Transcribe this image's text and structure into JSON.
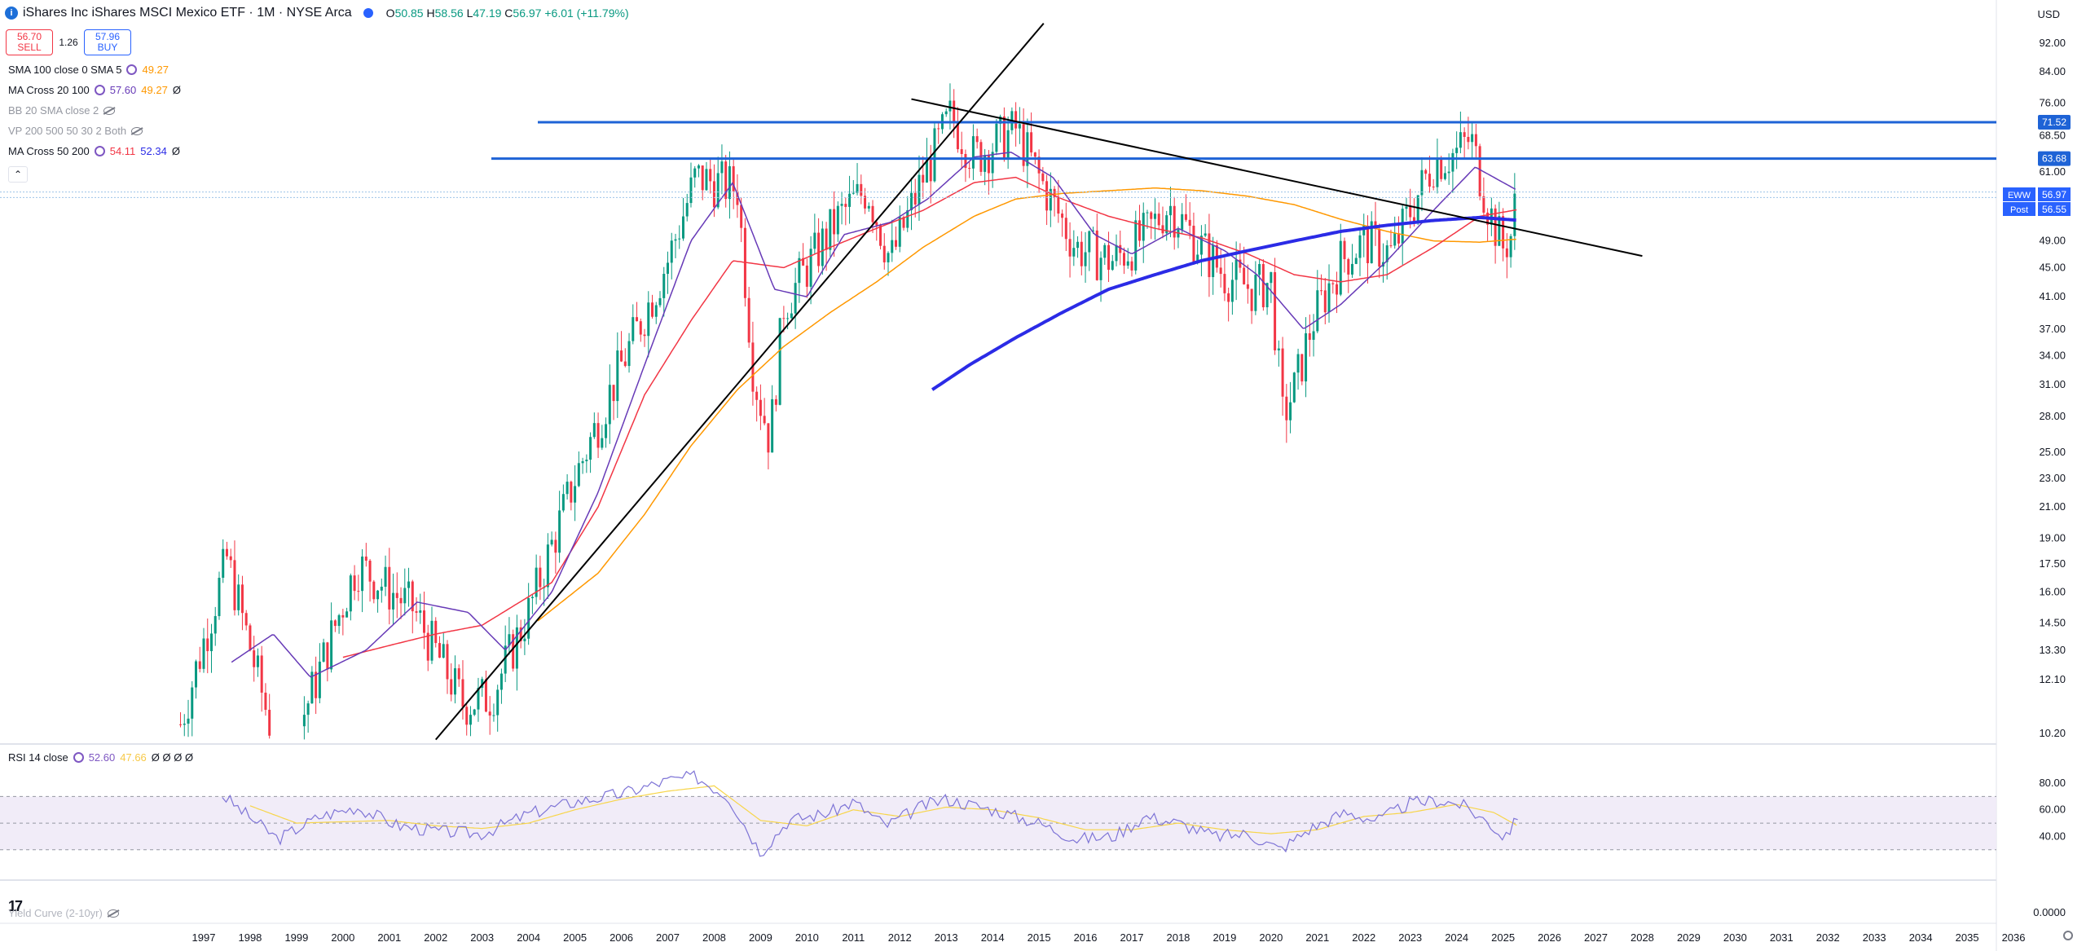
{
  "header": {
    "logo_letter": "i",
    "title": "iShares Inc iShares MSCI Mexico ETF · 1M · NYSE Arca",
    "o_label": "O",
    "o": "50.85",
    "h_label": "H",
    "h": "58.56",
    "l_label": "L",
    "l": "47.19",
    "c_label": "C",
    "c": "56.97",
    "change": "+6.01 (+11.79%)"
  },
  "trade": {
    "sell_price": "56.70",
    "sell_label": "SELL",
    "spread": "1.26",
    "buy_price": "57.96",
    "buy_label": "BUY"
  },
  "indicators": [
    {
      "name": "SMA 100 close 0 SMA 5",
      "v1": "49.27",
      "v2": ""
    },
    {
      "name": "MA Cross 20 100",
      "v1": "57.60",
      "v2": "49.27",
      "v3": "Ø"
    },
    {
      "name": "BB 20 SMA close 2",
      "v1": "",
      "v2": ""
    },
    {
      "name": "VP 200 500 50 30 2 Both",
      "v1": "",
      "v2": ""
    },
    {
      "name": "MA Cross 50 200",
      "v1": "54.11",
      "v2": "52.34",
      "v3": "Ø"
    }
  ],
  "rsi_legend": {
    "name": "RSI 14 close",
    "v1": "52.60",
    "v2": "47.66",
    "rest": "Ø Ø Ø Ø"
  },
  "yield_legend": "Yield Curve (2-10yr)",
  "currency": "USD",
  "colors": {
    "up": "#089981",
    "down": "#f23645",
    "ma20": "#673ab7",
    "ma50": "#f23645",
    "ma100": "#ff9800",
    "ma200": "#2b2be6",
    "hline": "#1e63d6",
    "trend": "#000000",
    "rsi": "#7e74d6",
    "rsi_ma": "#f7d54a"
  },
  "chart_data": {
    "type": "candlestick",
    "symbol": "EWW",
    "interval": "1M",
    "y_scale": "log",
    "y_ticks": [
      "92.00",
      "84.00",
      "76.00",
      "68.50",
      "61.00",
      "49.00",
      "45.00",
      "41.00",
      "37.00",
      "34.00",
      "31.00",
      "28.00",
      "25.00",
      "23.00",
      "21.00",
      "19.00",
      "17.50",
      "16.00",
      "14.50",
      "13.30",
      "12.10",
      "10.20"
    ],
    "x_ticks": [
      "1997",
      "1998",
      "1999",
      "2000",
      "2001",
      "2002",
      "2003",
      "2004",
      "2005",
      "2006",
      "2007",
      "2008",
      "2009",
      "2010",
      "2011",
      "2012",
      "2013",
      "2014",
      "2015",
      "2016",
      "2017",
      "2018",
      "2019",
      "2020",
      "2021",
      "2022",
      "2023",
      "2024",
      "2025",
      "2026",
      "2027",
      "2028",
      "2029",
      "2030",
      "2031",
      "2032",
      "2033",
      "2034",
      "2035",
      "2036"
    ],
    "price_labels": [
      {
        "text": "71.52",
        "value": 71.52
      },
      {
        "text": "63.68",
        "value": 63.68
      },
      {
        "text": "56.97",
        "value": 56.97,
        "tag": "EWW"
      },
      {
        "text": "56.55",
        "value": 56.55,
        "tag": "Post"
      }
    ],
    "horizontal_lines": [
      71.52,
      63.68
    ],
    "trendlines": [
      {
        "from": [
          2002.0,
          10.0
        ],
        "to": [
          2015.1,
          98.0
        ]
      },
      {
        "from": [
          2012.25,
          77.0
        ],
        "to": [
          2028.0,
          46.7
        ]
      }
    ],
    "monthly_close_keypoints": [
      [
        1996.5,
        10.5
      ],
      [
        1997.5,
        17.8
      ],
      [
        1998.7,
        9.0
      ],
      [
        1999.5,
        12.5
      ],
      [
        2000.3,
        17.5
      ],
      [
        2001.5,
        15.2
      ],
      [
        2002.6,
        11.2
      ],
      [
        2003.2,
        11.5
      ],
      [
        2004.0,
        15.0
      ],
      [
        2005.0,
        23.0
      ],
      [
        2006.0,
        33.0
      ],
      [
        2007.0,
        46.0
      ],
      [
        2007.6,
        60.0
      ],
      [
        2008.5,
        58.0
      ],
      [
        2008.85,
        32.0
      ],
      [
        2009.2,
        26.0
      ],
      [
        2009.5,
        40.0
      ],
      [
        2010.0,
        45.0
      ],
      [
        2010.7,
        53.0
      ],
      [
        2011.3,
        58.0
      ],
      [
        2011.8,
        46.0
      ],
      [
        2012.5,
        60.0
      ],
      [
        2013.1,
        73.0
      ],
      [
        2013.6,
        64.0
      ],
      [
        2014.5,
        70.0
      ],
      [
        2015.0,
        60.0
      ],
      [
        2015.8,
        48.0
      ],
      [
        2016.6,
        46.0
      ],
      [
        2017.3,
        50.0
      ],
      [
        2017.8,
        55.0
      ],
      [
        2018.5,
        48.0
      ],
      [
        2019.0,
        44.0
      ],
      [
        2019.6,
        42.0
      ],
      [
        2020.0,
        43.0
      ],
      [
        2020.25,
        28.0
      ],
      [
        2020.5,
        30.5
      ],
      [
        2020.9,
        38.0
      ],
      [
        2021.5,
        46.0
      ],
      [
        2022.0,
        49.0
      ],
      [
        2022.6,
        47.0
      ],
      [
        2023.0,
        54.0
      ],
      [
        2023.5,
        63.0
      ],
      [
        2024.0,
        65.0
      ],
      [
        2024.3,
        68.0
      ],
      [
        2024.7,
        54.0
      ],
      [
        2025.0,
        48.0
      ],
      [
        2025.25,
        50.85
      ],
      [
        2025.33,
        56.97
      ]
    ],
    "ma20_keypoints": [
      [
        1997.6,
        12.8
      ],
      [
        1998.5,
        14.0
      ],
      [
        1999.3,
        12.2
      ],
      [
        2000.5,
        13.3
      ],
      [
        2001.6,
        15.5
      ],
      [
        2002.7,
        15.0
      ],
      [
        2003.5,
        13.3
      ],
      [
        2004.5,
        16.0
      ],
      [
        2005.5,
        22.0
      ],
      [
        2006.5,
        33.0
      ],
      [
        2007.5,
        49.0
      ],
      [
        2008.4,
        59.0
      ],
      [
        2009.3,
        42.0
      ],
      [
        2010.0,
        41.0
      ],
      [
        2010.8,
        50.0
      ],
      [
        2011.8,
        52.0
      ],
      [
        2012.6,
        56.0
      ],
      [
        2013.6,
        64.0
      ],
      [
        2014.4,
        65.0
      ],
      [
        2015.3,
        60.0
      ],
      [
        2016.2,
        50.0
      ],
      [
        2017.0,
        47.0
      ],
      [
        2018.0,
        51.0
      ],
      [
        2019.0,
        47.5
      ],
      [
        2019.7,
        44.0
      ],
      [
        2020.7,
        37.0
      ],
      [
        2021.5,
        40.0
      ],
      [
        2022.5,
        46.0
      ],
      [
        2023.5,
        54.0
      ],
      [
        2024.4,
        62.0
      ],
      [
        2025.3,
        57.6
      ]
    ],
    "ma50_keypoints": [
      [
        2000.0,
        13.0
      ],
      [
        2001.0,
        13.5
      ],
      [
        2002.0,
        14.0
      ],
      [
        2003.0,
        14.4
      ],
      [
        2004.5,
        16.5
      ],
      [
        2005.5,
        21.0
      ],
      [
        2006.5,
        30.0
      ],
      [
        2007.5,
        38.0
      ],
      [
        2008.4,
        46.0
      ],
      [
        2009.5,
        45.0
      ],
      [
        2010.5,
        48.0
      ],
      [
        2011.5,
        51.0
      ],
      [
        2012.5,
        54.0
      ],
      [
        2013.6,
        59.0
      ],
      [
        2014.5,
        60.0
      ],
      [
        2015.5,
        56.0
      ],
      [
        2016.5,
        53.0
      ],
      [
        2017.5,
        51.0
      ],
      [
        2018.5,
        49.5
      ],
      [
        2019.5,
        47.0
      ],
      [
        2020.5,
        44.0
      ],
      [
        2021.5,
        43.0
      ],
      [
        2022.5,
        44.0
      ],
      [
        2023.5,
        48.0
      ],
      [
        2024.5,
        53.0
      ],
      [
        2025.3,
        54.11
      ]
    ],
    "ma100_keypoints": [
      [
        2004.2,
        14.6
      ],
      [
        2005.5,
        17.0
      ],
      [
        2006.5,
        20.5
      ],
      [
        2007.5,
        25.5
      ],
      [
        2008.5,
        30.5
      ],
      [
        2009.5,
        35.0
      ],
      [
        2010.5,
        39.0
      ],
      [
        2011.5,
        43.0
      ],
      [
        2012.5,
        48.0
      ],
      [
        2013.6,
        53.0
      ],
      [
        2014.5,
        56.0
      ],
      [
        2015.5,
        57.0
      ],
      [
        2016.5,
        57.5
      ],
      [
        2017.5,
        58.0
      ],
      [
        2018.5,
        57.5
      ],
      [
        2019.5,
        56.5
      ],
      [
        2020.5,
        55.0
      ],
      [
        2021.5,
        52.5
      ],
      [
        2022.5,
        50.5
      ],
      [
        2023.5,
        49.0
      ],
      [
        2024.5,
        48.8
      ],
      [
        2025.3,
        49.27
      ]
    ],
    "ma200_keypoints": [
      [
        2012.7,
        30.5
      ],
      [
        2013.5,
        33.0
      ],
      [
        2014.5,
        36.0
      ],
      [
        2015.5,
        39.0
      ],
      [
        2016.5,
        42.0
      ],
      [
        2017.5,
        44.0
      ],
      [
        2018.5,
        46.0
      ],
      [
        2019.5,
        47.5
      ],
      [
        2020.5,
        49.0
      ],
      [
        2021.5,
        50.5
      ],
      [
        2022.5,
        51.5
      ],
      [
        2023.5,
        52.3
      ],
      [
        2024.5,
        52.8
      ],
      [
        2025.3,
        52.34
      ]
    ],
    "rsi": {
      "y_ticks": [
        "80.00",
        "60.00",
        "40.00"
      ],
      "band": [
        30,
        70
      ],
      "keypoints": [
        [
          1997.4,
          71
        ],
        [
          1997.9,
          57
        ],
        [
          1998.6,
          38
        ],
        [
          1999.5,
          55
        ],
        [
          2000.3,
          62
        ],
        [
          2001.2,
          48
        ],
        [
          2002.0,
          44
        ],
        [
          2003.0,
          42
        ],
        [
          2004.0,
          57
        ],
        [
          2005.0,
          66
        ],
        [
          2006.0,
          72
        ],
        [
          2007.0,
          82
        ],
        [
          2007.6,
          85
        ],
        [
          2008.3,
          70
        ],
        [
          2009.0,
          28
        ],
        [
          2009.6,
          52
        ],
        [
          2010.5,
          58
        ],
        [
          2011.0,
          66
        ],
        [
          2011.7,
          48
        ],
        [
          2012.5,
          63
        ],
        [
          2013.0,
          68
        ],
        [
          2014.0,
          60
        ],
        [
          2015.0,
          50
        ],
        [
          2015.8,
          38
        ],
        [
          2016.6,
          40
        ],
        [
          2017.3,
          55
        ],
        [
          2018.0,
          50
        ],
        [
          2018.8,
          40
        ],
        [
          2019.5,
          42
        ],
        [
          2020.2,
          30
        ],
        [
          2020.8,
          45
        ],
        [
          2021.6,
          58
        ],
        [
          2022.3,
          52
        ],
        [
          2023.0,
          65
        ],
        [
          2023.6,
          67
        ],
        [
          2024.1,
          64
        ],
        [
          2024.7,
          50
        ],
        [
          2025.0,
          40
        ],
        [
          2025.33,
          52.6
        ]
      ],
      "ma_keypoints": [
        [
          1998.0,
          63
        ],
        [
          1999.0,
          50
        ],
        [
          2000.0,
          51
        ],
        [
          2001.0,
          52
        ],
        [
          2002.0,
          48
        ],
        [
          2003.0,
          46
        ],
        [
          2004.0,
          50
        ],
        [
          2005.0,
          60
        ],
        [
          2006.0,
          68
        ],
        [
          2007.0,
          74
        ],
        [
          2008.0,
          78
        ],
        [
          2009.0,
          52
        ],
        [
          2010.0,
          48
        ],
        [
          2011.0,
          60
        ],
        [
          2012.0,
          55
        ],
        [
          2013.0,
          62
        ],
        [
          2014.0,
          60
        ],
        [
          2015.0,
          54
        ],
        [
          2016.0,
          45
        ],
        [
          2017.0,
          45
        ],
        [
          2018.0,
          50
        ],
        [
          2019.0,
          45
        ],
        [
          2020.0,
          42
        ],
        [
          2021.0,
          45
        ],
        [
          2022.0,
          55
        ],
        [
          2023.0,
          58
        ],
        [
          2024.0,
          64
        ],
        [
          2024.8,
          58
        ],
        [
          2025.33,
          47.66
        ]
      ]
    },
    "yield_tick": "0.0000"
  }
}
